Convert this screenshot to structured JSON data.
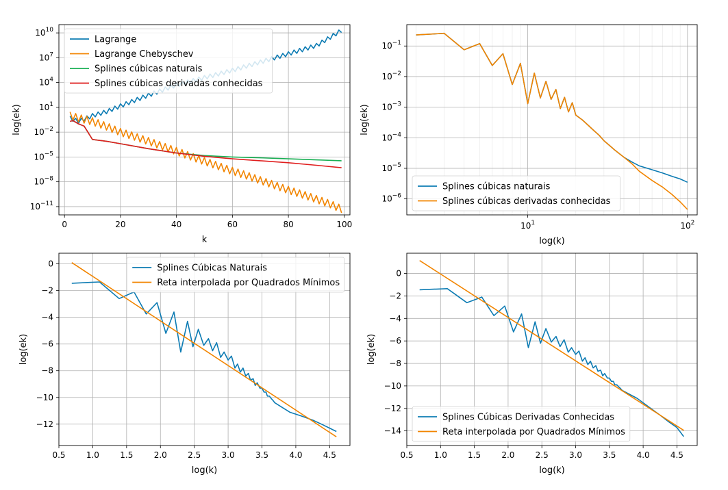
{
  "chart_data": [
    {
      "type": "line",
      "title": "",
      "xlabel": "k",
      "ylabel": "log(ek)",
      "yscale": "log",
      "xscale": "linear",
      "xlim": [
        -2,
        102
      ],
      "ylim": [
        1e-12,
        100000000000.0
      ],
      "xticks": [
        0,
        20,
        40,
        60,
        80,
        100
      ],
      "xtick_labels": [
        "0",
        "20",
        "40",
        "60",
        "80",
        "100"
      ],
      "yticks": [
        1e-11,
        1e-08,
        1e-05,
        0.01,
        10,
        10000,
        10000000,
        10000000000
      ],
      "ytick_labels": [
        "10^-11",
        "10^-8",
        "10^-5",
        "10^-2",
        "10^1",
        "10^4",
        "10^7",
        "10^10"
      ],
      "grid": true,
      "legend": "top-left",
      "series": [
        {
          "name": "Lagrange",
          "color": "#0C7BB3",
          "x": [
            2,
            5,
            10,
            15,
            20,
            30,
            40,
            50,
            60,
            70,
            80,
            90,
            95,
            99
          ],
          "y": [
            0.5,
            0.2,
            1,
            3,
            15,
            300,
            5000,
            40000,
            300000,
            3000000,
            30000000,
            300000000,
            3000000000,
            20000000000
          ]
        },
        {
          "name": "Lagrange Chebyschev",
          "color": "#F28500",
          "x": [
            2,
            5,
            10,
            15,
            20,
            25,
            30,
            35,
            40,
            45,
            50,
            55,
            60,
            65,
            70,
            75,
            80,
            85,
            90,
            95,
            99
          ],
          "y": [
            1,
            0.5,
            0.2,
            0.05,
            0.01,
            0.003,
            0.0008,
            0.0002,
            5e-05,
            1.2e-05,
            3e-06,
            8e-07,
            2e-07,
            6e-08,
            1.5e-08,
            4e-09,
            1e-09,
            3e-10,
            8e-11,
            2e-11,
            5e-12
          ],
          "zigzag": true
        },
        {
          "name": "Splines cúbicas naturais",
          "color": "#1AAF54",
          "x": [
            2,
            3,
            5,
            7,
            10,
            15,
            20,
            30,
            40,
            50,
            60,
            70,
            80,
            90,
            99
          ],
          "y": [
            0.2,
            0.25,
            0.1,
            0.055,
            0.0013,
            0.0008,
            0.0004,
            0.0001,
            3e-05,
            1.5e-05,
            1e-05,
            8e-06,
            6e-06,
            4.5e-06,
            3.5e-06
          ]
        },
        {
          "name": "Splines cúbicas derivadas conhecidas",
          "color": "#E01E1E",
          "x": [
            2,
            3,
            5,
            7,
            10,
            15,
            20,
            30,
            40,
            50,
            60,
            70,
            80,
            90,
            99
          ],
          "y": [
            0.2,
            0.25,
            0.1,
            0.055,
            0.0013,
            0.0008,
            0.0004,
            0.0001,
            3e-05,
            1.2e-05,
            6e-06,
            3.5e-06,
            2e-06,
            1e-06,
            5e-07
          ]
        }
      ]
    },
    {
      "type": "line",
      "title": "",
      "xlabel": "log(k)",
      "ylabel": "log(ek)",
      "xscale": "log",
      "yscale": "log",
      "xlim": [
        1.75,
        115
      ],
      "ylim": [
        3e-07,
        0.5
      ],
      "xticks": [
        10,
        100
      ],
      "xtick_labels": [
        "10^1",
        "10^2"
      ],
      "yticks": [
        1e-06,
        1e-05,
        0.0001,
        0.001,
        0.01,
        0.1
      ],
      "ytick_labels": [
        "10^-6",
        "10^-5",
        "10^-4",
        "10^-3",
        "10^-2",
        "10^-1"
      ],
      "grid": true,
      "legend": "bottom-left",
      "series": [
        {
          "name": "Splines cúbicas naturais",
          "color": "#0C7BB3",
          "x": [
            2,
            3,
            4,
            5,
            6,
            7,
            8,
            9,
            10,
            11,
            12,
            13,
            14,
            15,
            16,
            17,
            18,
            19,
            20,
            22,
            24,
            26,
            28,
            30,
            35,
            40,
            45,
            50,
            60,
            70,
            80,
            90,
            100
          ],
          "y": [
            0.23,
            0.26,
            0.075,
            0.12,
            0.023,
            0.056,
            0.0055,
            0.027,
            0.0013,
            0.013,
            0.002,
            0.007,
            0.0018,
            0.0038,
            0.0009,
            0.0021,
            0.0007,
            0.0014,
            0.00055,
            0.00038,
            0.00025,
            0.00017,
            0.00012,
            8e-05,
            4e-05,
            2.3e-05,
            1.6e-05,
            1.2e-05,
            9e-06,
            7e-06,
            5.5e-06,
            4.5e-06,
            3.5e-06
          ]
        },
        {
          "name": "Splines cúbicas derivadas conhecidas",
          "color": "#F28500",
          "x": [
            2,
            3,
            4,
            5,
            6,
            7,
            8,
            9,
            10,
            11,
            12,
            13,
            14,
            15,
            16,
            17,
            18,
            19,
            20,
            22,
            24,
            26,
            28,
            30,
            35,
            40,
            45,
            50,
            60,
            70,
            80,
            90,
            100
          ],
          "y": [
            0.23,
            0.26,
            0.075,
            0.12,
            0.023,
            0.056,
            0.0055,
            0.027,
            0.0013,
            0.013,
            0.002,
            0.007,
            0.0018,
            0.0038,
            0.0009,
            0.0021,
            0.0007,
            0.0014,
            0.00055,
            0.00038,
            0.00025,
            0.00017,
            0.00012,
            8e-05,
            4e-05,
            2.3e-05,
            1.4e-05,
            8e-06,
            4e-06,
            2.4e-06,
            1.4e-06,
            8e-07,
            4.5e-07
          ]
        }
      ]
    },
    {
      "type": "line",
      "title": "",
      "xlabel": "log(k)",
      "ylabel": "log(ek)",
      "xscale": "linear",
      "yscale": "linear",
      "xlim": [
        0.5,
        4.8
      ],
      "ylim": [
        -13.6,
        0.8
      ],
      "xticks": [
        0.5,
        1.0,
        1.5,
        2.0,
        2.5,
        3.0,
        3.5,
        4.0,
        4.5
      ],
      "xtick_labels": [
        "0.5",
        "1.0",
        "1.5",
        "2.0",
        "2.5",
        "3.0",
        "3.5",
        "4.0",
        "4.5"
      ],
      "yticks": [
        -12,
        -10,
        -8,
        -6,
        -4,
        -2,
        0
      ],
      "ytick_labels": [
        "−12",
        "−10",
        "−8",
        "−6",
        "−4",
        "−2",
        "0"
      ],
      "grid": true,
      "legend": "top-right",
      "series": [
        {
          "name": "Splines Cúbicas Naturais",
          "color": "#0C7BB3",
          "x": [
            0.69,
            1.1,
            1.39,
            1.61,
            1.79,
            1.95,
            2.08,
            2.2,
            2.3,
            2.4,
            2.48,
            2.56,
            2.64,
            2.71,
            2.77,
            2.83,
            2.89,
            2.94,
            3.0,
            3.05,
            3.1,
            3.14,
            3.18,
            3.22,
            3.26,
            3.3,
            3.33,
            3.37,
            3.4,
            3.43,
            3.47,
            3.5,
            3.53,
            3.56,
            3.58,
            3.61,
            3.64,
            3.66,
            3.69,
            3.91,
            4.09,
            4.25,
            4.38,
            4.5,
            4.6
          ],
          "y": [
            -1.45,
            -1.35,
            -2.6,
            -2.1,
            -3.75,
            -2.9,
            -5.2,
            -3.6,
            -6.6,
            -4.3,
            -6.2,
            -4.9,
            -6.1,
            -5.6,
            -6.5,
            -5.9,
            -7.0,
            -6.6,
            -7.2,
            -6.9,
            -7.8,
            -7.5,
            -8.1,
            -7.8,
            -8.4,
            -8.2,
            -8.7,
            -8.6,
            -9.1,
            -8.9,
            -9.3,
            -9.3,
            -9.6,
            -9.6,
            -9.9,
            -9.9,
            -10.1,
            -10.2,
            -10.4,
            -11.1,
            -11.4,
            -11.7,
            -12.0,
            -12.3,
            -12.55
          ]
        },
        {
          "name": "Reta interpolada por Quadrados Mínimos",
          "color": "#F28500",
          "x": [
            0.69,
            4.6
          ],
          "y": [
            0.1,
            -12.95
          ]
        }
      ]
    },
    {
      "type": "line",
      "title": "",
      "xlabel": "log(k)",
      "ylabel": "log(ek)",
      "xscale": "linear",
      "yscale": "linear",
      "xlim": [
        0.5,
        4.8
      ],
      "ylim": [
        -15.3,
        1.8
      ],
      "xticks": [
        0.5,
        1.0,
        1.5,
        2.0,
        2.5,
        3.0,
        3.5,
        4.0,
        4.5
      ],
      "xtick_labels": [
        "0.5",
        "1.0",
        "1.5",
        "2.0",
        "2.5",
        "3.0",
        "3.5",
        "4.0",
        "4.5"
      ],
      "yticks": [
        -14,
        -12,
        -10,
        -8,
        -6,
        -4,
        -2,
        0
      ],
      "ytick_labels": [
        "−14",
        "−12",
        "−10",
        "−8",
        "−6",
        "−4",
        "−2",
        "0"
      ],
      "grid": true,
      "legend": "bottom-left",
      "series": [
        {
          "name": "Splines Cúbicas Derivadas Conhecidas",
          "color": "#0C7BB3",
          "x": [
            0.69,
            1.1,
            1.39,
            1.61,
            1.79,
            1.95,
            2.08,
            2.2,
            2.3,
            2.4,
            2.48,
            2.56,
            2.64,
            2.71,
            2.77,
            2.83,
            2.89,
            2.94,
            3.0,
            3.05,
            3.1,
            3.14,
            3.18,
            3.22,
            3.26,
            3.3,
            3.33,
            3.37,
            3.4,
            3.43,
            3.47,
            3.5,
            3.53,
            3.56,
            3.58,
            3.61,
            3.64,
            3.66,
            3.69,
            3.91,
            4.09,
            4.25,
            4.38,
            4.5,
            4.6
          ],
          "y": [
            -1.45,
            -1.35,
            -2.6,
            -2.1,
            -3.75,
            -2.9,
            -5.2,
            -3.6,
            -6.6,
            -4.3,
            -6.2,
            -4.9,
            -6.1,
            -5.6,
            -6.5,
            -5.9,
            -7.0,
            -6.6,
            -7.2,
            -6.9,
            -7.8,
            -7.5,
            -8.1,
            -7.8,
            -8.4,
            -8.2,
            -8.7,
            -8.6,
            -9.1,
            -8.9,
            -9.3,
            -9.3,
            -9.6,
            -9.6,
            -9.9,
            -9.9,
            -10.1,
            -10.2,
            -10.4,
            -11.1,
            -11.9,
            -12.6,
            -13.2,
            -13.7,
            -14.5
          ]
        },
        {
          "name": "Reta interpolada por Quadrados Mínimos",
          "color": "#F28500",
          "x": [
            0.69,
            4.6
          ],
          "y": [
            1.15,
            -13.95
          ]
        }
      ]
    }
  ]
}
